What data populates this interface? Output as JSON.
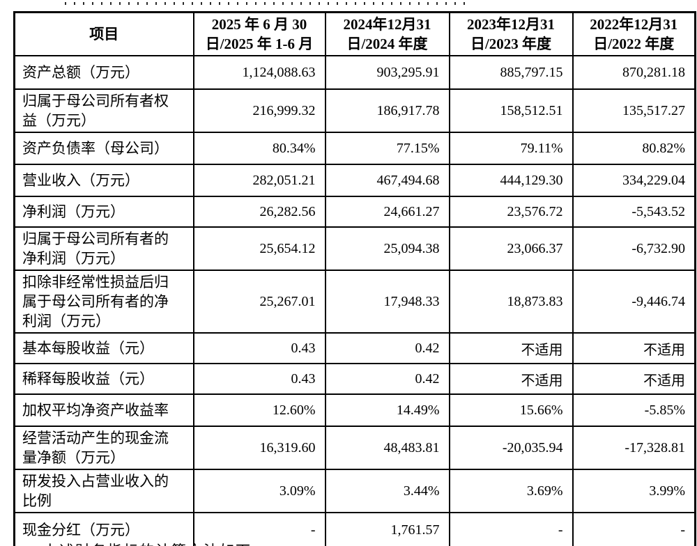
{
  "page": {
    "footer_text": "上述财务指标的计算方法如下"
  },
  "table": {
    "header": [
      "项目",
      "2025 年 6 月 30\n日/2025 年 1-6 月",
      "2024年12月31\n日/2024 年度",
      "2023年12月31\n日/2023 年度",
      "2022年12月31\n日/2022 年度"
    ],
    "rows": [
      {
        "label": "资产总额（万元）",
        "values": [
          "1,124,088.63",
          "903,295.91",
          "885,797.15",
          "870,281.18"
        ]
      },
      {
        "label": "归属于母公司所有者权\n益（万元）",
        "values": [
          "216,999.32",
          "186,917.78",
          "158,512.51",
          "135,517.27"
        ]
      },
      {
        "label": "资产负债率（母公司）",
        "values": [
          "80.34%",
          "77.15%",
          "79.11%",
          "80.82%"
        ]
      },
      {
        "label": "营业收入（万元）",
        "values": [
          "282,051.21",
          "467,494.68",
          "444,129.30",
          "334,229.04"
        ]
      },
      {
        "label": "净利润（万元）",
        "values": [
          "26,282.56",
          "24,661.27",
          "23,576.72",
          "-5,543.52"
        ]
      },
      {
        "label": "归属于母公司所有者的\n净利润（万元）",
        "values": [
          "25,654.12",
          "25,094.38",
          "23,066.37",
          "-6,732.90"
        ]
      },
      {
        "label": "扣除非经常性损益后归\n属于母公司所有者的净\n利润（万元）",
        "values": [
          "25,267.01",
          "17,948.33",
          "18,873.83",
          "-9,446.74"
        ]
      },
      {
        "label": "基本每股收益（元）",
        "values": [
          "0.43",
          "0.42",
          "不适用",
          "不适用"
        ]
      },
      {
        "label": "稀释每股收益（元）",
        "values": [
          "0.43",
          "0.42",
          "不适用",
          "不适用"
        ]
      },
      {
        "label": "加权平均净资产收益率",
        "values": [
          "12.60%",
          "14.49%",
          "15.66%",
          "-5.85%"
        ]
      },
      {
        "label": "经营活动产生的现金流\n量净额（万元）",
        "values": [
          "16,319.60",
          "48,483.81",
          "-20,035.94",
          "-17,328.81"
        ]
      },
      {
        "label": "研发投入占营业收入的\n比例",
        "values": [
          "3.09%",
          "3.44%",
          "3.69%",
          "3.99%"
        ]
      },
      {
        "label": "现金分红（万元）",
        "values": [
          "-",
          "1,761.57",
          "-",
          "-"
        ]
      }
    ]
  }
}
